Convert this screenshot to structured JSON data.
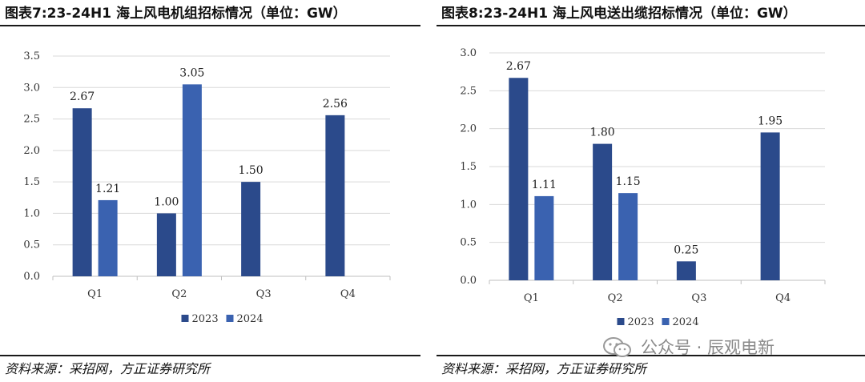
{
  "left": {
    "title": "图表7:23-24H1 海上风电机组招标情况（单位：GW）",
    "source": "资料来源：采招网，方正证券研究所"
  },
  "right": {
    "title": "图表8:23-24H1 海上风电送出缆招标情况（单位：GW）",
    "source": "资料来源：采招网，方正证券研究所"
  },
  "watermark": {
    "text": "公众号 · 辰观电新",
    "icon": "wechat-icon"
  },
  "colors": {
    "series_2023": "#2b4a8b",
    "series_2024": "#3a62b0",
    "grid": "#d9d9d9",
    "axis": "#bfbfbf"
  },
  "chart_data": [
    {
      "type": "bar",
      "categories": [
        "Q1",
        "Q2",
        "Q3",
        "Q4"
      ],
      "series": [
        {
          "name": "2023",
          "values": [
            2.67,
            1.0,
            1.5,
            2.56
          ]
        },
        {
          "name": "2024",
          "values": [
            1.21,
            3.05,
            null,
            null
          ]
        }
      ],
      "data_labels": [
        [
          "2.67",
          "1.00",
          "1.50",
          "2.56"
        ],
        [
          "1.21",
          "3.05",
          "",
          ""
        ]
      ],
      "yticks": [
        "0.0",
        "0.5",
        "1.0",
        "1.5",
        "2.0",
        "2.5",
        "3.0",
        "3.5"
      ],
      "ylim": [
        0,
        3.5
      ],
      "grid": true,
      "legend_position": "bottom"
    },
    {
      "type": "bar",
      "categories": [
        "Q1",
        "Q2",
        "Q3",
        "Q4"
      ],
      "series": [
        {
          "name": "2023",
          "values": [
            2.67,
            1.8,
            0.25,
            1.95
          ]
        },
        {
          "name": "2024",
          "values": [
            1.11,
            1.15,
            null,
            null
          ]
        }
      ],
      "data_labels": [
        [
          "2.67",
          "1.80",
          "0.25",
          "1.95"
        ],
        [
          "1.11",
          "1.15",
          "",
          ""
        ]
      ],
      "yticks": [
        "0.0",
        "0.5",
        "1.0",
        "1.5",
        "2.0",
        "2.5",
        "3.0"
      ],
      "ylim": [
        0,
        3.0
      ],
      "grid": true,
      "legend_position": "bottom"
    }
  ]
}
